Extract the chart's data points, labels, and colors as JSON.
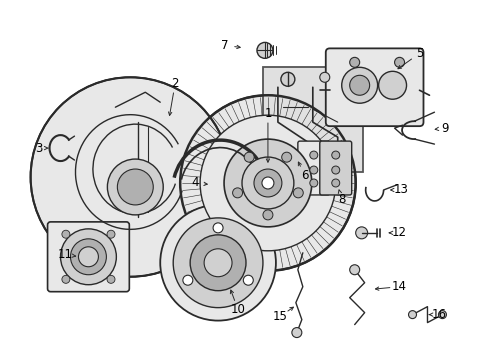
{
  "bg_color": "#ffffff",
  "line_color": "#2a2a2a",
  "light_fill": "#e8e8e8",
  "mid_fill": "#d0d0d0",
  "dark_fill": "#b0b0b0",
  "figsize": [
    4.89,
    3.6
  ],
  "dpi": 100,
  "label_fontsize": 8.5
}
